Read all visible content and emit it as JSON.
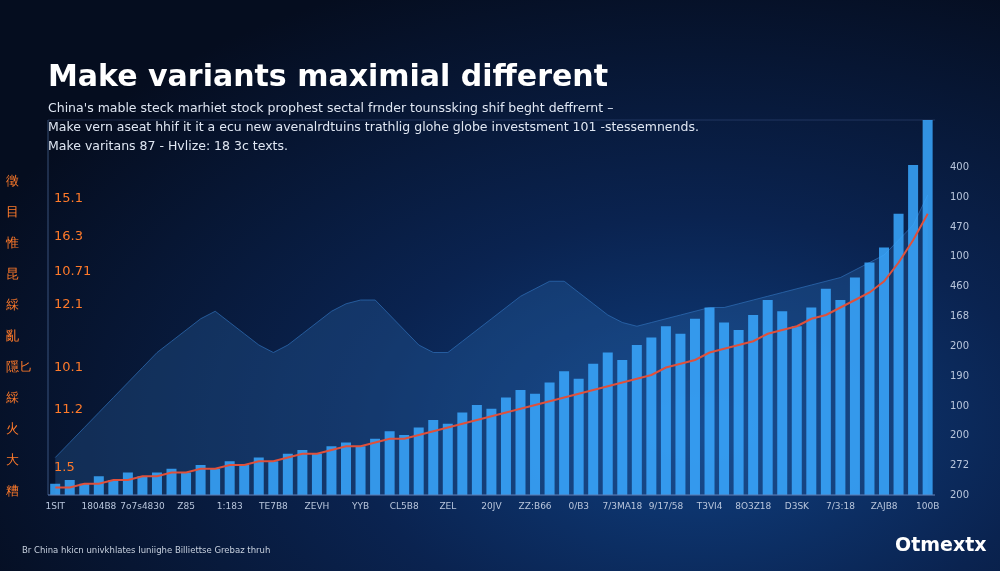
{
  "chart_data": {
    "type": "bar",
    "title": "Make variants maximial different",
    "subtitle": [
      "China's mable steck marhiet stock prophest sectal frnder tounssking shif beght deffrernt –",
      "Make vern aseat hhif it it a ecu new avenalrdtuins trathlig glohe globe investsment 101 -stessemnends.",
      "Make varitans 87 - Hvlize: 18 3c texts."
    ],
    "annotations": {
      "left_glyphs": [
        "徵",
        "目",
        "惟",
        "昆",
        "綵",
        "亂",
        "隱匕",
        "綵",
        "火",
        "大",
        "糟"
      ],
      "left_numbers": [
        "15.1",
        "16.3",
        "10.71",
        "12.1",
        "10.1",
        "11.2",
        "1.5"
      ],
      "right_numbers": [
        "400",
        "100",
        "470",
        "100",
        "460",
        "168",
        "200",
        "190",
        "100",
        "200",
        "272",
        "200"
      ],
      "footer": "Br China hkicn univkhlates Iuniighe Billiettse Grebaz thruh",
      "logo": "Otmextx"
    },
    "categories": [
      "1SIT",
      null,
      null,
      "1804B8",
      null,
      null,
      "7o7s4830",
      null,
      null,
      "Z85",
      null,
      null,
      "1:183",
      null,
      null,
      "TE7B8",
      null,
      null,
      "ZEVH",
      null,
      null,
      "YYB",
      null,
      null,
      "CL5B8",
      null,
      null,
      "ZEL",
      null,
      null,
      "20JV",
      null,
      null,
      "ZZ:B66",
      null,
      null,
      "0/B3",
      null,
      null,
      "7/3MA18",
      null,
      null,
      "9/17/58",
      null,
      null,
      "T3VI4",
      null,
      null,
      "8O3Z18",
      null,
      null,
      "D3SK",
      null,
      null,
      "7/3:18",
      null,
      null,
      "ZAJB8",
      null,
      null,
      "100B"
    ],
    "series": [
      {
        "type": "area",
        "color": "#2f6fb8",
        "values": [
          10,
          14,
          18,
          22,
          26,
          30,
          34,
          38,
          41,
          44,
          47,
          49,
          46,
          43,
          40,
          38,
          40,
          43,
          46,
          49,
          51,
          52,
          52,
          48,
          44,
          40,
          38,
          38,
          41,
          44,
          47,
          50,
          53,
          55,
          57,
          57,
          54,
          51,
          48,
          46,
          45,
          46,
          47,
          48,
          49,
          50,
          50,
          51,
          52,
          53,
          54,
          55,
          56,
          57,
          58,
          60,
          62,
          64,
          68,
          72,
          80
        ]
      },
      {
        "type": "bar",
        "color": "#3aa8ff",
        "values": [
          3,
          4,
          3,
          5,
          4,
          6,
          5,
          6,
          7,
          6,
          8,
          7,
          9,
          8,
          10,
          9,
          11,
          12,
          11,
          13,
          14,
          13,
          15,
          17,
          16,
          18,
          20,
          19,
          22,
          24,
          23,
          26,
          28,
          27,
          30,
          33,
          31,
          35,
          38,
          36,
          40,
          42,
          45,
          43,
          47,
          50,
          46,
          44,
          48,
          52,
          49,
          45,
          50,
          55,
          52,
          58,
          62,
          66,
          75,
          88,
          100
        ]
      },
      {
        "type": "line",
        "color": "#e0503a",
        "values": [
          2,
          2,
          3,
          3,
          4,
          4,
          5,
          5,
          6,
          6,
          7,
          7,
          8,
          8,
          9,
          9,
          10,
          11,
          11,
          12,
          13,
          13,
          14,
          15,
          15,
          16,
          17,
          18,
          19,
          20,
          21,
          22,
          23,
          24,
          25,
          26,
          27,
          28,
          29,
          30,
          31,
          32,
          34,
          35,
          36,
          38,
          39,
          40,
          41,
          43,
          44,
          45,
          47,
          48,
          50,
          52,
          54,
          57,
          62,
          68,
          75
        ]
      }
    ],
    "ylim": [
      0,
      100
    ],
    "yticks": [
      0,
      20,
      40,
      60,
      80,
      100
    ],
    "grid": true,
    "tick_labels": "x"
  }
}
